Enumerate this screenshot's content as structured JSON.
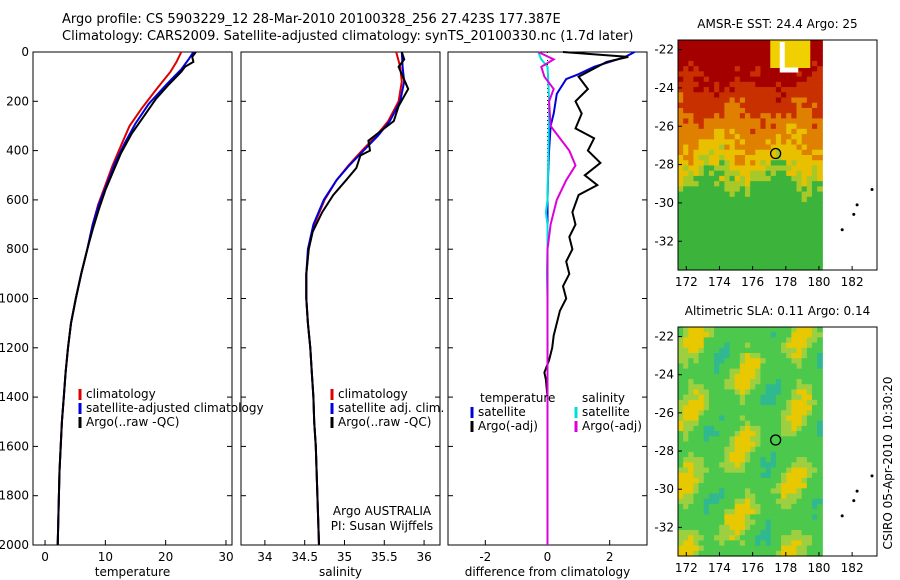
{
  "header": {
    "line1": "Argo profile: CS 5903229_12 28-Mar-2010 20100328_256 27.423S 177.387E",
    "line2": "Climatology: CARS2009. Satellite-adjusted climatology: synTS_20100330.nc (1.7d later)"
  },
  "credit": "CSIRO 05-Apr-2010 10:30:20",
  "chart_data": [
    {
      "type": "line",
      "xlabel": "temperature",
      "ylim": [
        2000,
        0
      ],
      "xlim": [
        -2,
        31
      ],
      "xticks": [
        "0",
        "10",
        "20",
        "30"
      ],
      "yticks": [
        "0",
        "200",
        "400",
        "600",
        "800",
        "1000",
        "1200",
        "1400",
        "1600",
        "1800",
        "2000"
      ],
      "legend": [
        "climatology",
        "satellite-adjusted climatology",
        "Argo(..raw -QC)"
      ],
      "series": [
        {
          "name": "climatology",
          "color": "#dd0000",
          "points": [
            [
              22.6,
              0
            ],
            [
              21.8,
              40
            ],
            [
              20.8,
              80
            ],
            [
              18.5,
              150
            ],
            [
              16,
              230
            ],
            [
              14,
              300
            ],
            [
              12.6,
              380
            ],
            [
              11.2,
              460
            ],
            [
              10,
              540
            ],
            [
              8.8,
              620
            ],
            [
              7.9,
              700
            ],
            [
              7,
              800
            ],
            [
              6,
              900
            ],
            [
              5.1,
              1000
            ],
            [
              4.3,
              1100
            ],
            [
              3.8,
              1200
            ],
            [
              3.4,
              1300
            ],
            [
              3.1,
              1400
            ],
            [
              2.8,
              1500
            ],
            [
              2.6,
              1600
            ],
            [
              2.4,
              1700
            ],
            [
              2.3,
              1800
            ],
            [
              2.2,
              1900
            ],
            [
              2.1,
              2000
            ]
          ]
        },
        {
          "name": "satellite-adjusted climatology",
          "color": "#0000dd",
          "points": [
            [
              24.6,
              0
            ],
            [
              23.8,
              30
            ],
            [
              22.6,
              70
            ],
            [
              20.2,
              130
            ],
            [
              17.2,
              210
            ],
            [
              15,
              290
            ],
            [
              13.2,
              370
            ],
            [
              11.6,
              450
            ],
            [
              10.2,
              540
            ],
            [
              8.9,
              620
            ],
            [
              7.9,
              700
            ],
            [
              7,
              800
            ],
            [
              6,
              900
            ],
            [
              5.1,
              1000
            ],
            [
              4.3,
              1100
            ],
            [
              3.8,
              1200
            ],
            [
              3.4,
              1300
            ],
            [
              3.1,
              1400
            ],
            [
              2.8,
              1500
            ],
            [
              2.6,
              1600
            ],
            [
              2.4,
              1700
            ],
            [
              2.3,
              1800
            ],
            [
              2.2,
              1900
            ],
            [
              2.1,
              2000
            ]
          ]
        },
        {
          "name": "Argo(..raw -QC)",
          "color": "#000000",
          "points": [
            [
              25,
              0
            ],
            [
              24.4,
              20
            ],
            [
              24.6,
              40
            ],
            [
              23.2,
              60
            ],
            [
              22.6,
              80
            ],
            [
              20.6,
              130
            ],
            [
              18.4,
              190
            ],
            [
              16.4,
              260
            ],
            [
              14.4,
              330
            ],
            [
              12.6,
              410
            ],
            [
              11.2,
              490
            ],
            [
              10,
              560
            ],
            [
              8.9,
              640
            ],
            [
              7.9,
              720
            ],
            [
              7,
              800
            ],
            [
              6,
              900
            ],
            [
              5.1,
              1000
            ],
            [
              4.3,
              1100
            ],
            [
              3.8,
              1200
            ],
            [
              3.4,
              1300
            ],
            [
              3.1,
              1400
            ],
            [
              2.8,
              1500
            ],
            [
              2.6,
              1600
            ],
            [
              2.4,
              1700
            ],
            [
              2.3,
              1800
            ],
            [
              2.2,
              1900
            ],
            [
              2.1,
              2000
            ]
          ]
        }
      ]
    },
    {
      "type": "line",
      "xlabel": "salinity",
      "ylim": [
        2000,
        0
      ],
      "xlim": [
        33.7,
        36.2
      ],
      "xticks": [
        "34",
        "34.5",
        "35",
        "35.5",
        "36"
      ],
      "legend": [
        "climatology",
        "satellite adj. clim.",
        "Argo(..raw -QC)"
      ],
      "annotation": [
        "Argo AUSTRALIA",
        "PI: Susan Wijffels"
      ],
      "series": [
        {
          "name": "climatology",
          "color": "#dd0000",
          "points": [
            [
              35.65,
              0
            ],
            [
              35.7,
              60
            ],
            [
              35.72,
              120
            ],
            [
              35.68,
              200
            ],
            [
              35.55,
              280
            ],
            [
              35.4,
              340
            ],
            [
              35.22,
              400
            ],
            [
              35.05,
              460
            ],
            [
              34.9,
              520
            ],
            [
              34.75,
              600
            ],
            [
              34.62,
              700
            ],
            [
              34.55,
              800
            ],
            [
              34.52,
              900
            ],
            [
              34.52,
              1000
            ],
            [
              34.54,
              1100
            ],
            [
              34.57,
              1200
            ],
            [
              34.59,
              1300
            ],
            [
              34.61,
              1400
            ],
            [
              34.62,
              1500
            ],
            [
              34.64,
              1600
            ],
            [
              34.65,
              1700
            ],
            [
              34.66,
              1800
            ],
            [
              34.67,
              1900
            ],
            [
              34.68,
              2000
            ]
          ]
        },
        {
          "name": "satellite adj. clim.",
          "color": "#0000dd",
          "points": [
            [
              35.72,
              0
            ],
            [
              35.73,
              60
            ],
            [
              35.75,
              120
            ],
            [
              35.7,
              200
            ],
            [
              35.57,
              280
            ],
            [
              35.42,
              340
            ],
            [
              35.24,
              400
            ],
            [
              35.06,
              460
            ],
            [
              34.9,
              520
            ],
            [
              34.74,
              600
            ],
            [
              34.61,
              700
            ],
            [
              34.54,
              800
            ],
            [
              34.52,
              900
            ],
            [
              34.52,
              1000
            ],
            [
              34.54,
              1100
            ],
            [
              34.57,
              1200
            ],
            [
              34.59,
              1300
            ],
            [
              34.61,
              1400
            ],
            [
              34.62,
              1500
            ],
            [
              34.64,
              1600
            ],
            [
              34.65,
              1700
            ],
            [
              34.66,
              1800
            ],
            [
              34.67,
              1900
            ],
            [
              34.68,
              2000
            ]
          ]
        },
        {
          "name": "Argo(..raw -QC)",
          "color": "#000000",
          "points": [
            [
              35.72,
              0
            ],
            [
              35.75,
              30
            ],
            [
              35.68,
              60
            ],
            [
              35.72,
              90
            ],
            [
              35.8,
              150
            ],
            [
              35.68,
              220
            ],
            [
              35.62,
              280
            ],
            [
              35.42,
              330
            ],
            [
              35.3,
              360
            ],
            [
              35.32,
              400
            ],
            [
              35.2,
              420
            ],
            [
              35.15,
              470
            ],
            [
              35.02,
              520
            ],
            [
              34.86,
              580
            ],
            [
              34.72,
              650
            ],
            [
              34.6,
              730
            ],
            [
              34.55,
              800
            ],
            [
              34.52,
              900
            ],
            [
              34.52,
              1000
            ],
            [
              34.54,
              1100
            ],
            [
              34.57,
              1200
            ],
            [
              34.59,
              1300
            ],
            [
              34.61,
              1400
            ],
            [
              34.62,
              1500
            ],
            [
              34.64,
              1600
            ],
            [
              34.65,
              1700
            ],
            [
              34.66,
              1800
            ],
            [
              34.67,
              1900
            ],
            [
              34.68,
              2000
            ]
          ]
        }
      ]
    },
    {
      "type": "line",
      "xlabel": "difference from climatology",
      "ylim": [
        2000,
        0
      ],
      "xlim": [
        -3.2,
        3.2
      ],
      "xticks": [
        "-2",
        "0",
        "2"
      ],
      "legend_headers": [
        "temperature",
        "salinity"
      ],
      "legend": [
        "satellite",
        "Argo(-adj)",
        "satellite",
        "Argo(-adj)"
      ],
      "series": [
        {
          "name": "temperature satellite",
          "color": "#0000dd",
          "points": [
            [
              2.8,
              0
            ],
            [
              2.5,
              20
            ],
            [
              1.5,
              60
            ],
            [
              1,
              90
            ],
            [
              0.6,
              110
            ],
            [
              0.3,
              170
            ],
            [
              0.2,
              250
            ],
            [
              0.1,
              300
            ],
            [
              0.05,
              400
            ],
            [
              0.02,
              500
            ],
            [
              0,
              600
            ],
            [
              0,
              2000
            ]
          ]
        },
        {
          "name": "temperature Argo(-adj)",
          "color": "#000000",
          "points": [
            [
              0.5,
              0
            ],
            [
              2.6,
              20
            ],
            [
              1.9,
              40
            ],
            [
              1,
              100
            ],
            [
              1.3,
              150
            ],
            [
              0.9,
              200
            ],
            [
              1.1,
              250
            ],
            [
              0.9,
              310
            ],
            [
              1.5,
              350
            ],
            [
              1.3,
              400
            ],
            [
              1.7,
              450
            ],
            [
              1.2,
              500
            ],
            [
              1.6,
              540
            ],
            [
              1,
              580
            ],
            [
              0.8,
              650
            ],
            [
              0.9,
              700
            ],
            [
              0.7,
              750
            ],
            [
              0.8,
              800
            ],
            [
              0.6,
              850
            ],
            [
              0.7,
              900
            ],
            [
              0.5,
              950
            ],
            [
              0.6,
              1000
            ],
            [
              0.4,
              1050
            ],
            [
              0.3,
              1100
            ],
            [
              0.2,
              1150
            ],
            [
              0.15,
              1200
            ],
            [
              0.05,
              1250
            ],
            [
              -0.1,
              1300
            ],
            [
              -0.05,
              1330
            ],
            [
              0,
              1400
            ],
            [
              0,
              2000
            ]
          ]
        },
        {
          "name": "salinity satellite",
          "color": "#00dddd",
          "points": [
            [
              -0.3,
              0
            ],
            [
              -0.2,
              30
            ],
            [
              0,
              60
            ],
            [
              0.02,
              100
            ],
            [
              0.05,
              200
            ],
            [
              0.03,
              400
            ],
            [
              0,
              600
            ],
            [
              -0.05,
              650
            ],
            [
              0,
              700
            ],
            [
              0,
              800
            ],
            [
              -0.02,
              900
            ],
            [
              0,
              1000
            ],
            [
              0,
              2000
            ]
          ]
        },
        {
          "name": "salinity Argo(-adj)",
          "color": "#dd00dd",
          "points": [
            [
              -0.3,
              0
            ],
            [
              0.2,
              30
            ],
            [
              -0.2,
              60
            ],
            [
              -0.1,
              100
            ],
            [
              0.2,
              150
            ],
            [
              0.05,
              200
            ],
            [
              0.1,
              300
            ],
            [
              0.7,
              400
            ],
            [
              0.9,
              460
            ],
            [
              0.6,
              520
            ],
            [
              0.3,
              600
            ],
            [
              0.1,
              700
            ],
            [
              0,
              800
            ],
            [
              0,
              2000
            ]
          ]
        }
      ]
    }
  ],
  "maps": [
    {
      "title": "AMSR-E SST: 24.4 Argo: 25",
      "xticks": [
        "172",
        "174",
        "176",
        "178",
        "180",
        "182"
      ],
      "yticks": [
        "-22",
        "-24",
        "-26",
        "-28",
        "-30",
        "-32"
      ],
      "xlim": [
        171.5,
        183.5
      ],
      "ylim": [
        -33.5,
        -21.5
      ],
      "argo_location": {
        "lon": 177.387,
        "lat": -27.423
      },
      "colors": {
        "hot": "#a50000",
        "warm": "#e08000",
        "mid": "#e8c000",
        "green": "#3cb43c"
      }
    },
    {
      "title": "Altimetric SLA: 0.11 Argo: 0.14",
      "xticks": [
        "172",
        "174",
        "176",
        "178",
        "180",
        "182"
      ],
      "yticks": [
        "-22",
        "-24",
        "-26",
        "-28",
        "-30",
        "-32"
      ],
      "xlim": [
        171.5,
        183.5
      ],
      "ylim": [
        -33.5,
        -21.5
      ],
      "argo_location": {
        "lon": 177.387,
        "lat": -27.423
      },
      "colors": {
        "green": "#4cc84c",
        "yellow": "#e8c800",
        "teal": "#30b890"
      }
    }
  ]
}
